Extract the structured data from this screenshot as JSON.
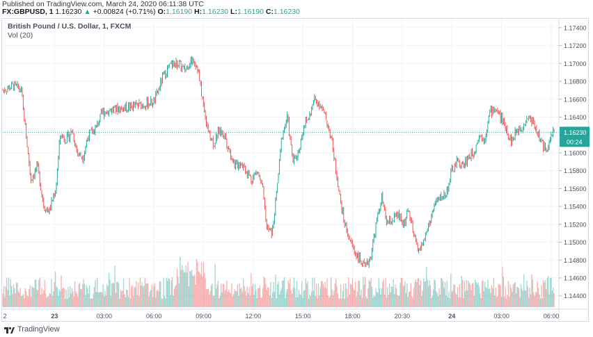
{
  "header": {
    "published": "Published on TradingView.com, March 24, 2020 06:11:38 UTC",
    "symbol": "FX:GBPUSD, 1",
    "last": "1.16230",
    "arrow": "▲",
    "change": "+0.00824 (+0.71%)",
    "o_label": "O:",
    "o": "1.16190",
    "h_label": "H:",
    "h": "1.16230",
    "l_label": "L:",
    "l": "1.16190",
    "c_label": "C:",
    "c": "1.16230"
  },
  "legend": {
    "title": "British Pound / U.S. Dollar, 1, FXCM",
    "volume": "Vol (20)"
  },
  "price_tag": {
    "price": "1.16230",
    "countdown": "00:24"
  },
  "footer": {
    "brand": "TradingView"
  },
  "colors": {
    "up": "#26a69a",
    "down": "#ef5350",
    "grid": "#f0f3fa",
    "axis_text": "#4a4f5c"
  },
  "chart_data": {
    "type": "candlestick",
    "ylim": [
      1.1425,
      1.175
    ],
    "y_ticks": [
      "1.17400",
      "1.17200",
      "1.17000",
      "1.16800",
      "1.16600",
      "1.16400",
      "1.16200",
      "1.16000",
      "1.15800",
      "1.15600",
      "1.15400",
      "1.15200",
      "1.15000",
      "1.14800",
      "1.14600",
      "1.14400"
    ],
    "x_ticks": [
      "2",
      "23",
      "03:00",
      "06:00",
      "09:00",
      "12:00",
      "15:00",
      "18:00",
      "20:30",
      "24",
      "03:00",
      "06:00"
    ],
    "price_path": [
      {
        "t": 0.0,
        "p": 1.167
      },
      {
        "t": 1.0,
        "p": 1.1675
      },
      {
        "t": 1.7,
        "p": 1.167
      },
      {
        "t": 2.1,
        "p": 1.1625
      },
      {
        "t": 2.6,
        "p": 1.157
      },
      {
        "t": 3.2,
        "p": 1.1585
      },
      {
        "t": 3.8,
        "p": 1.154
      },
      {
        "t": 4.3,
        "p": 1.1535
      },
      {
        "t": 4.9,
        "p": 1.156
      },
      {
        "t": 5.3,
        "p": 1.162
      },
      {
        "t": 5.9,
        "p": 1.1615
      },
      {
        "t": 6.4,
        "p": 1.1625
      },
      {
        "t": 6.9,
        "p": 1.16
      },
      {
        "t": 7.4,
        "p": 1.1595
      },
      {
        "t": 7.9,
        "p": 1.162
      },
      {
        "t": 8.5,
        "p": 1.1625
      },
      {
        "t": 9.2,
        "p": 1.1645
      },
      {
        "t": 10.0,
        "p": 1.1648
      },
      {
        "t": 11.0,
        "p": 1.165
      },
      {
        "t": 12.0,
        "p": 1.1652
      },
      {
        "t": 13.0,
        "p": 1.1654
      },
      {
        "t": 14.0,
        "p": 1.1657
      },
      {
        "t": 14.8,
        "p": 1.1685
      },
      {
        "t": 15.5,
        "p": 1.1698
      },
      {
        "t": 16.2,
        "p": 1.17
      },
      {
        "t": 16.8,
        "p": 1.1692
      },
      {
        "t": 17.2,
        "p": 1.17
      },
      {
        "t": 17.6,
        "p": 1.1705
      },
      {
        "t": 18.0,
        "p": 1.1695
      },
      {
        "t": 18.5,
        "p": 1.1655
      },
      {
        "t": 19.0,
        "p": 1.1625
      },
      {
        "t": 19.5,
        "p": 1.161
      },
      {
        "t": 20.0,
        "p": 1.1625
      },
      {
        "t": 20.5,
        "p": 1.162
      },
      {
        "t": 21.0,
        "p": 1.16
      },
      {
        "t": 21.5,
        "p": 1.1585
      },
      {
        "t": 22.0,
        "p": 1.159
      },
      {
        "t": 22.5,
        "p": 1.158
      },
      {
        "t": 23.0,
        "p": 1.157
      },
      {
        "t": 23.5,
        "p": 1.158
      },
      {
        "t": 24.0,
        "p": 1.156
      },
      {
        "t": 24.4,
        "p": 1.1515
      },
      {
        "t": 24.9,
        "p": 1.151
      },
      {
        "t": 25.3,
        "p": 1.1555
      },
      {
        "t": 25.8,
        "p": 1.162
      },
      {
        "t": 26.3,
        "p": 1.164
      },
      {
        "t": 26.8,
        "p": 1.159
      },
      {
        "t": 27.3,
        "p": 1.16
      },
      {
        "t": 27.8,
        "p": 1.163
      },
      {
        "t": 28.3,
        "p": 1.164
      },
      {
        "t": 28.8,
        "p": 1.166
      },
      {
        "t": 29.3,
        "p": 1.1655
      },
      {
        "t": 29.8,
        "p": 1.164
      },
      {
        "t": 30.3,
        "p": 1.162
      },
      {
        "t": 30.8,
        "p": 1.158
      },
      {
        "t": 31.2,
        "p": 1.1545
      },
      {
        "t": 31.6,
        "p": 1.152
      },
      {
        "t": 32.0,
        "p": 1.1505
      },
      {
        "t": 32.5,
        "p": 1.149
      },
      {
        "t": 33.0,
        "p": 1.148
      },
      {
        "t": 33.5,
        "p": 1.147
      },
      {
        "t": 34.0,
        "p": 1.1485
      },
      {
        "t": 34.5,
        "p": 1.152
      },
      {
        "t": 35.0,
        "p": 1.155
      },
      {
        "t": 35.5,
        "p": 1.152
      },
      {
        "t": 36.0,
        "p": 1.1525
      },
      {
        "t": 36.5,
        "p": 1.153
      },
      {
        "t": 37.0,
        "p": 1.152
      },
      {
        "t": 37.5,
        "p": 1.1535
      },
      {
        "t": 38.0,
        "p": 1.1505
      },
      {
        "t": 38.5,
        "p": 1.149
      },
      {
        "t": 39.0,
        "p": 1.1505
      },
      {
        "t": 39.5,
        "p": 1.1525
      },
      {
        "t": 40.0,
        "p": 1.1545
      },
      {
        "t": 40.5,
        "p": 1.155
      },
      {
        "t": 41.0,
        "p": 1.1555
      },
      {
        "t": 41.5,
        "p": 1.158
      },
      {
        "t": 42.0,
        "p": 1.159
      },
      {
        "t": 42.5,
        "p": 1.1585
      },
      {
        "t": 43.0,
        "p": 1.1595
      },
      {
        "t": 43.5,
        "p": 1.16
      },
      {
        "t": 44.0,
        "p": 1.162
      },
      {
        "t": 44.5,
        "p": 1.1615
      },
      {
        "t": 45.0,
        "p": 1.1645
      },
      {
        "t": 45.5,
        "p": 1.165
      },
      {
        "t": 46.0,
        "p": 1.164
      },
      {
        "t": 46.5,
        "p": 1.1628
      },
      {
        "t": 47.0,
        "p": 1.1612
      },
      {
        "t": 47.5,
        "p": 1.1625
      },
      {
        "t": 48.0,
        "p": 1.163
      },
      {
        "t": 48.5,
        "p": 1.164
      },
      {
        "t": 49.0,
        "p": 1.1635
      },
      {
        "t": 49.5,
        "p": 1.162
      },
      {
        "t": 50.0,
        "p": 1.1605
      },
      {
        "t": 50.5,
        "p": 1.161
      },
      {
        "t": 51.0,
        "p": 1.163
      }
    ],
    "volume_ylim": [
      0,
      2000
    ]
  }
}
